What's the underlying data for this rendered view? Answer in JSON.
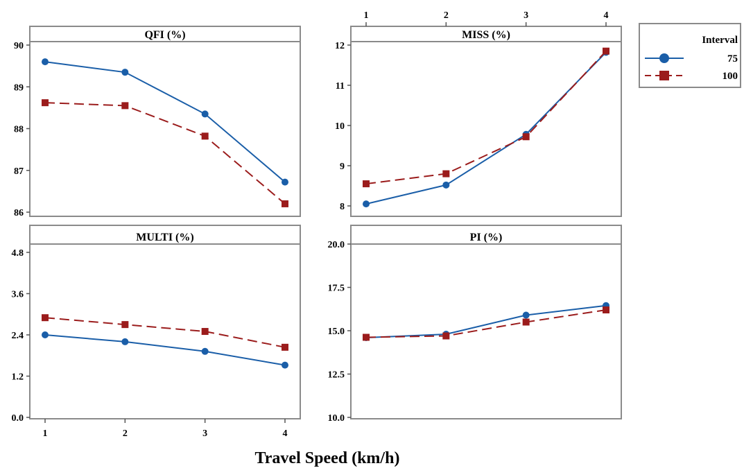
{
  "chart_data": {
    "type": "line",
    "x": [
      1,
      2,
      3,
      4
    ],
    "xlabel": "Travel Speed (km/h)",
    "legend": {
      "title": "Interval",
      "placement": "top-right",
      "entries": [
        {
          "label": "75",
          "color": "#1a5ea8",
          "marker": "circle",
          "line": "solid"
        },
        {
          "label": "100",
          "color": "#9b1c1c",
          "marker": "square",
          "line": "dashed"
        }
      ]
    },
    "panels": [
      {
        "title": "QFI (%)",
        "yticks": [
          "86",
          "87",
          "88",
          "89",
          "90"
        ],
        "ylim": [
          86,
          90
        ],
        "xticks_shown": "none",
        "series": [
          {
            "name": "75",
            "values": [
              89.6,
              89.35,
              88.35,
              86.72
            ]
          },
          {
            "name": "100",
            "values": [
              88.62,
              88.55,
              87.82,
              86.2
            ]
          }
        ]
      },
      {
        "title": "MISS (%)",
        "yticks": [
          "8",
          "9",
          "10",
          "11",
          "12"
        ],
        "ylim": [
          8,
          12
        ],
        "xticks_shown": "top",
        "xticks": [
          "1",
          "2",
          "3",
          "4"
        ],
        "series": [
          {
            "name": "75",
            "values": [
              8.05,
              8.52,
              9.78,
              11.82
            ]
          },
          {
            "name": "100",
            "values": [
              8.55,
              8.8,
              9.72,
              11.85
            ]
          }
        ]
      },
      {
        "title": "MULTI (%)",
        "yticks": [
          "0.0",
          "1.2",
          "2.4",
          "3.6",
          "4.8"
        ],
        "ylim": [
          0,
          4.8
        ],
        "xticks_shown": "bottom",
        "xticks": [
          "1",
          "2",
          "3",
          "4"
        ],
        "series": [
          {
            "name": "75",
            "values": [
              2.4,
              2.2,
              1.92,
              1.52
            ]
          },
          {
            "name": "100",
            "values": [
              2.9,
              2.7,
              2.5,
              2.04
            ]
          }
        ]
      },
      {
        "title": "PI (%)",
        "yticks": [
          "10.0",
          "12.5",
          "15.0",
          "17.5",
          "20.0"
        ],
        "ylim": [
          10,
          20
        ],
        "xticks_shown": "none",
        "series": [
          {
            "name": "75",
            "values": [
              14.6,
              14.8,
              15.9,
              16.45
            ]
          },
          {
            "name": "100",
            "values": [
              14.62,
              14.7,
              15.5,
              16.2
            ]
          }
        ]
      }
    ]
  }
}
